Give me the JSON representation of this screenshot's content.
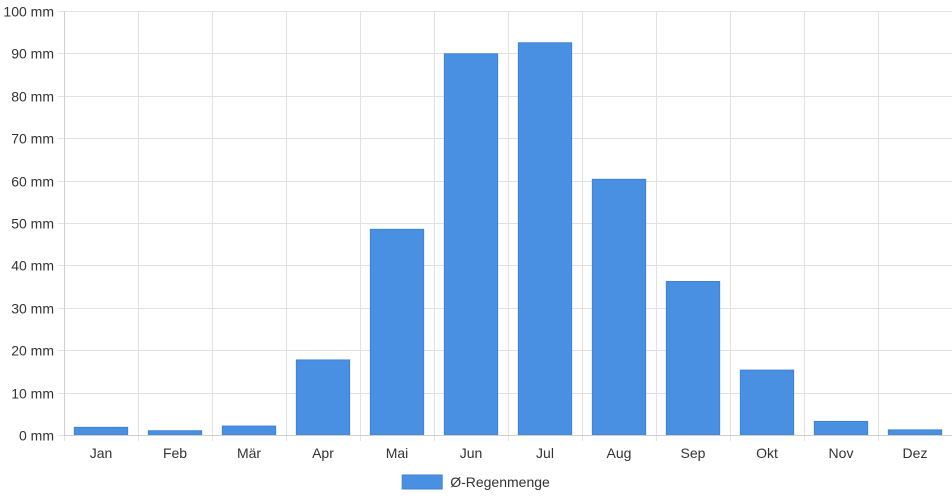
{
  "chart_data": {
    "type": "bar",
    "categories": [
      "Jan",
      "Feb",
      "Mär",
      "Apr",
      "Mai",
      "Jun",
      "Jul",
      "Aug",
      "Sep",
      "Okt",
      "Nov",
      "Dez"
    ],
    "series": [
      {
        "name": "Ø-Regenmenge",
        "values": [
          1.8,
          1.0,
          2.1,
          17.7,
          48.5,
          89.9,
          92.5,
          60.3,
          36.2,
          15.3,
          3.2,
          1.2
        ]
      }
    ],
    "y_unit": "mm",
    "ylim": [
      0,
      100
    ],
    "y_ticks": [
      0,
      10,
      20,
      30,
      40,
      50,
      60,
      70,
      80,
      90,
      100
    ],
    "y_tick_labels": [
      "0 mm",
      "10 mm",
      "20 mm",
      "30 mm",
      "40 mm",
      "50 mm",
      "60 mm",
      "70 mm",
      "80 mm",
      "90 mm",
      "100 mm"
    ],
    "grid": true,
    "legend_position": "bottom-center",
    "colors": {
      "bar": "#4a90e2",
      "bar_border": "#3d82d6"
    }
  }
}
